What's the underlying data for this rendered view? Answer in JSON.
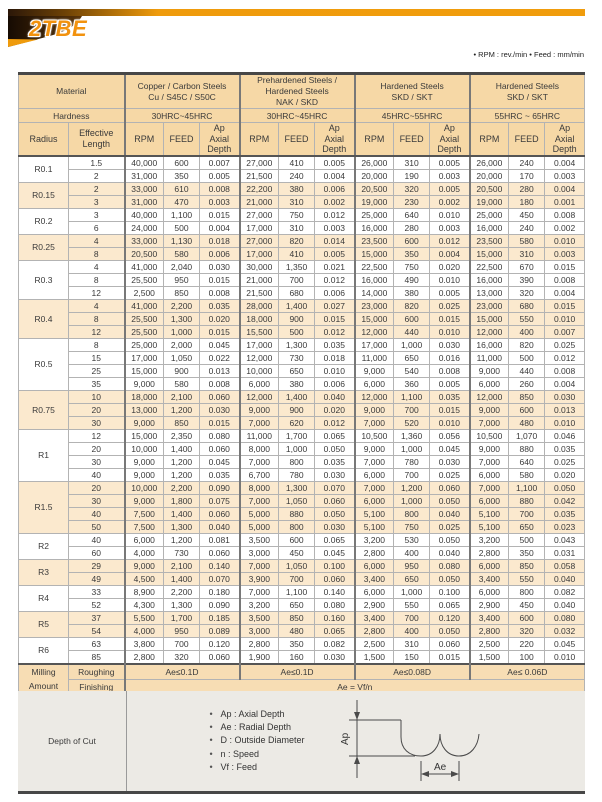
{
  "page": {
    "title": "2TBE",
    "note": "• RPM : rev./min  • Feed : mm/min"
  },
  "colors": {
    "accent_orange": "#F0940E",
    "header_peach": "#F6D8A6",
    "stripe_peach": "#FBE9CE",
    "milling_peach": "#F7DDB4",
    "section_gray": "#ECEAE5"
  },
  "table": {
    "material_label": "Material",
    "hardness_label": "Hardness",
    "radius_label": "Radius",
    "length_label": "Effective Length",
    "sub_headers": {
      "rpm": "RPM",
      "feed": "FEED",
      "ap1": "Ap",
      "ap2": "Axial Depth"
    },
    "groups": [
      {
        "material": "Copper / Carbon Steels",
        "material2": "Cu / S45C / S50C",
        "hardness": "30HRC~45HRC"
      },
      {
        "material": "Prehardened Steels / Hardened Steels",
        "material2": "NAK / SKD",
        "hardness": "30HRC~45HRC"
      },
      {
        "material": "Hardened Steels",
        "material2": "SKD / SKT",
        "hardness": "45HRC~55HRC"
      },
      {
        "material": "Hardened Steels",
        "material2": "SKD / SKT",
        "hardness": "55HRC ~ 65HRC"
      }
    ],
    "radius_groups": [
      {
        "radius": "R0.1",
        "shaded": false,
        "rows": [
          {
            "len": "1.5",
            "v": [
              "40,000",
              "600",
              "0.007",
              "27,000",
              "410",
              "0.005",
              "26,000",
              "310",
              "0.005",
              "26,000",
              "240",
              "0.004"
            ]
          },
          {
            "len": "2",
            "v": [
              "31,000",
              "350",
              "0.005",
              "21,500",
              "240",
              "0.004",
              "20,000",
              "190",
              "0.003",
              "20,000",
              "170",
              "0.003"
            ]
          }
        ]
      },
      {
        "radius": "R0.15",
        "shaded": true,
        "rows": [
          {
            "len": "2",
            "v": [
              "33,000",
              "610",
              "0.008",
              "22,200",
              "380",
              "0.006",
              "20,500",
              "320",
              "0.005",
              "20,500",
              "280",
              "0.004"
            ]
          },
          {
            "len": "3",
            "v": [
              "31,000",
              "470",
              "0.003",
              "21,000",
              "310",
              "0.002",
              "19,000",
              "230",
              "0.002",
              "19,000",
              "180",
              "0.001"
            ]
          }
        ]
      },
      {
        "radius": "R0.2",
        "shaded": false,
        "rows": [
          {
            "len": "3",
            "v": [
              "40,000",
              "1,100",
              "0.015",
              "27,000",
              "750",
              "0.012",
              "25,000",
              "640",
              "0.010",
              "25,000",
              "450",
              "0.008"
            ]
          },
          {
            "len": "6",
            "v": [
              "24,000",
              "500",
              "0.004",
              "17,000",
              "310",
              "0.003",
              "16,000",
              "280",
              "0.003",
              "16,000",
              "240",
              "0.002"
            ]
          }
        ]
      },
      {
        "radius": "R0.25",
        "shaded": true,
        "rows": [
          {
            "len": "4",
            "v": [
              "33,000",
              "1,130",
              "0.018",
              "27,000",
              "820",
              "0.014",
              "23,500",
              "600",
              "0.012",
              "23,500",
              "580",
              "0.010"
            ]
          },
          {
            "len": "8",
            "v": [
              "20,500",
              "580",
              "0.006",
              "17,000",
              "410",
              "0.005",
              "15,000",
              "350",
              "0.004",
              "15,000",
              "310",
              "0.003"
            ]
          }
        ]
      },
      {
        "radius": "R0.3",
        "shaded": false,
        "rows": [
          {
            "len": "4",
            "v": [
              "41,000",
              "2,040",
              "0.030",
              "30,000",
              "1,350",
              "0.021",
              "22,500",
              "750",
              "0.020",
              "22,500",
              "670",
              "0.015"
            ]
          },
          {
            "len": "8",
            "v": [
              "25,500",
              "950",
              "0.015",
              "21,000",
              "700",
              "0.012",
              "16,000",
              "490",
              "0.010",
              "16,000",
              "390",
              "0.008"
            ]
          },
          {
            "len": "12",
            "v": [
              "2,500",
              "850",
              "0.008",
              "21,500",
              "680",
              "0.006",
              "14,000",
              "380",
              "0.005",
              "13,000",
              "320",
              "0.004"
            ]
          }
        ]
      },
      {
        "radius": "R0.4",
        "shaded": true,
        "rows": [
          {
            "len": "4",
            "v": [
              "41,000",
              "2,200",
              "0.035",
              "28,000",
              "1,400",
              "0.027",
              "23,000",
              "820",
              "0.025",
              "23,000",
              "680",
              "0.015"
            ]
          },
          {
            "len": "8",
            "v": [
              "25,500",
              "1,300",
              "0.020",
              "18,000",
              "900",
              "0.015",
              "15,000",
              "600",
              "0.015",
              "15,000",
              "550",
              "0.010"
            ]
          },
          {
            "len": "12",
            "v": [
              "25,500",
              "1,000",
              "0.015",
              "15,500",
              "500",
              "0.012",
              "12,000",
              "440",
              "0.010",
              "12,000",
              "400",
              "0.007"
            ]
          }
        ]
      },
      {
        "radius": "R0.5",
        "shaded": false,
        "rows": [
          {
            "len": "8",
            "v": [
              "25,000",
              "2,000",
              "0.045",
              "17,000",
              "1,300",
              "0.035",
              "17,000",
              "1,000",
              "0.030",
              "16,000",
              "820",
              "0.025"
            ]
          },
          {
            "len": "15",
            "v": [
              "17,000",
              "1,050",
              "0.022",
              "12,000",
              "730",
              "0.018",
              "11,000",
              "650",
              "0.016",
              "11,000",
              "500",
              "0.012"
            ]
          },
          {
            "len": "25",
            "v": [
              "15,000",
              "900",
              "0.013",
              "10,000",
              "650",
              "0.010",
              "9,000",
              "540",
              "0.008",
              "9,000",
              "440",
              "0.008"
            ]
          },
          {
            "len": "35",
            "v": [
              "9,000",
              "580",
              "0.008",
              "6,000",
              "380",
              "0.006",
              "6,000",
              "360",
              "0.005",
              "6,000",
              "260",
              "0.004"
            ]
          }
        ]
      },
      {
        "radius": "R0.75",
        "shaded": true,
        "rows": [
          {
            "len": "10",
            "v": [
              "18,000",
              "2,100",
              "0.060",
              "12,000",
              "1,400",
              "0.040",
              "12,000",
              "1,100",
              "0.035",
              "12,000",
              "850",
              "0.030"
            ]
          },
          {
            "len": "20",
            "v": [
              "13,000",
              "1,200",
              "0.030",
              "9,000",
              "900",
              "0.020",
              "9,000",
              "700",
              "0.015",
              "9,000",
              "600",
              "0.013"
            ]
          },
          {
            "len": "30",
            "v": [
              "9,000",
              "850",
              "0.015",
              "7,000",
              "620",
              "0.012",
              "7,000",
              "520",
              "0.010",
              "7,000",
              "480",
              "0.010"
            ]
          }
        ]
      },
      {
        "radius": "R1",
        "shaded": false,
        "rows": [
          {
            "len": "12",
            "v": [
              "15,000",
              "2,350",
              "0.080",
              "11,000",
              "1,700",
              "0.065",
              "10,500",
              "1,360",
              "0.056",
              "10,500",
              "1,070",
              "0.046"
            ]
          },
          {
            "len": "20",
            "v": [
              "10,000",
              "1,400",
              "0.060",
              "8,000",
              "1,000",
              "0.050",
              "9,000",
              "1,000",
              "0.045",
              "9,000",
              "880",
              "0.035"
            ]
          },
          {
            "len": "30",
            "v": [
              "9,000",
              "1,200",
              "0.045",
              "7,000",
              "800",
              "0.035",
              "7,000",
              "780",
              "0.030",
              "7,000",
              "640",
              "0.025"
            ]
          },
          {
            "len": "40",
            "v": [
              "9,000",
              "1,200",
              "0.035",
              "6,700",
              "780",
              "0.030",
              "6,000",
              "700",
              "0.025",
              "6,000",
              "580",
              "0.020"
            ]
          }
        ]
      },
      {
        "radius": "R1.5",
        "shaded": true,
        "rows": [
          {
            "len": "20",
            "v": [
              "10,000",
              "2,200",
              "0.090",
              "8,000",
              "1,300",
              "0.070",
              "7,000",
              "1,200",
              "0.060",
              "7,000",
              "1,100",
              "0.050"
            ]
          },
          {
            "len": "30",
            "v": [
              "9,000",
              "1,800",
              "0.075",
              "7,000",
              "1,050",
              "0.060",
              "6,000",
              "1,000",
              "0.050",
              "6,000",
              "880",
              "0.042"
            ]
          },
          {
            "len": "40",
            "v": [
              "7,500",
              "1,400",
              "0.060",
              "5,000",
              "880",
              "0.050",
              "5,100",
              "800",
              "0.040",
              "5,100",
              "700",
              "0.035"
            ]
          },
          {
            "len": "50",
            "v": [
              "7,500",
              "1,300",
              "0.040",
              "5,000",
              "800",
              "0.030",
              "5,100",
              "750",
              "0.025",
              "5,100",
              "650",
              "0.023"
            ]
          }
        ]
      },
      {
        "radius": "R2",
        "shaded": false,
        "rows": [
          {
            "len": "40",
            "v": [
              "6,000",
              "1,200",
              "0.081",
              "3,500",
              "600",
              "0.065",
              "3,200",
              "530",
              "0.050",
              "3,200",
              "500",
              "0.043"
            ]
          },
          {
            "len": "60",
            "v": [
              "4,000",
              "730",
              "0.060",
              "3,000",
              "450",
              "0.045",
              "2,800",
              "400",
              "0.040",
              "2,800",
              "350",
              "0.031"
            ]
          }
        ]
      },
      {
        "radius": "R3",
        "shaded": true,
        "rows": [
          {
            "len": "29",
            "v": [
              "9,000",
              "2,100",
              "0.140",
              "7,000",
              "1,050",
              "0.100",
              "6,000",
              "950",
              "0.080",
              "6,000",
              "850",
              "0.058"
            ]
          },
          {
            "len": "49",
            "v": [
              "4,500",
              "1,400",
              "0.070",
              "3,900",
              "700",
              "0.060",
              "3,400",
              "650",
              "0.050",
              "3,400",
              "550",
              "0.040"
            ]
          }
        ]
      },
      {
        "radius": "R4",
        "shaded": false,
        "rows": [
          {
            "len": "33",
            "v": [
              "8,900",
              "2,200",
              "0.180",
              "7,000",
              "1,100",
              "0.140",
              "6,000",
              "1,000",
              "0.100",
              "6,000",
              "800",
              "0.082"
            ]
          },
          {
            "len": "52",
            "v": [
              "4,300",
              "1,300",
              "0.090",
              "3,200",
              "650",
              "0.080",
              "2,900",
              "550",
              "0.065",
              "2,900",
              "450",
              "0.040"
            ]
          }
        ]
      },
      {
        "radius": "R5",
        "shaded": true,
        "rows": [
          {
            "len": "37",
            "v": [
              "5,500",
              "1,700",
              "0.185",
              "3,500",
              "850",
              "0.160",
              "3,400",
              "700",
              "0.120",
              "3,400",
              "600",
              "0.080"
            ]
          },
          {
            "len": "54",
            "v": [
              "4,000",
              "950",
              "0.089",
              "3,000",
              "480",
              "0.065",
              "2,800",
              "400",
              "0.050",
              "2,800",
              "320",
              "0.032"
            ]
          }
        ]
      },
      {
        "radius": "R6",
        "shaded": false,
        "rows": [
          {
            "len": "63",
            "v": [
              "3,800",
              "700",
              "0.120",
              "2,800",
              "350",
              "0.082",
              "2,500",
              "310",
              "0.060",
              "2,500",
              "220",
              "0.045"
            ]
          },
          {
            "len": "85",
            "v": [
              "2,800",
              "320",
              "0.060",
              "1,900",
              "160",
              "0.030",
              "1,500",
              "150",
              "0.015",
              "1,500",
              "100",
              "0.010"
            ]
          }
        ]
      }
    ]
  },
  "milling": {
    "label": "Milling Amount",
    "roughing_label": "Roughing",
    "finishing_label": "Finishing",
    "roughing": [
      "Ae≤0.1D",
      "Ae≤0.1D",
      "Ae≤0.08D",
      "Ae≤ 0.06D"
    ],
    "finishing": "Ae = Vf/n"
  },
  "depth_of_cut": {
    "label": "Depth of Cut",
    "bullets": [
      "Ap : Axial Depth",
      "Ae : Radial Depth",
      "D : Outside Diameter",
      "n : Speed",
      "Vf : Feed"
    ],
    "diagram": {
      "ap": "Ap",
      "ae": "Ae"
    }
  }
}
